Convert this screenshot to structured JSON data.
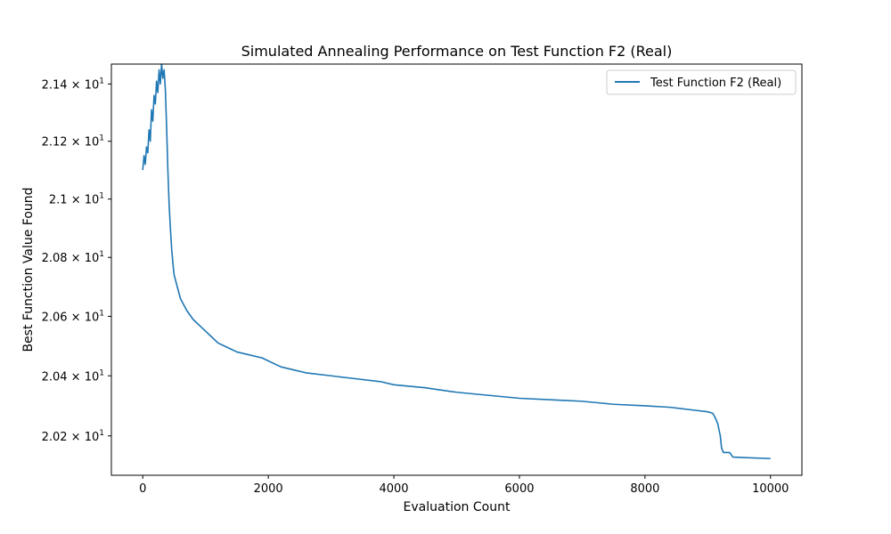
{
  "chart_data": {
    "type": "line",
    "title": "Simulated Annealing Performance on Test Function F2 (Real)",
    "xlabel": "Evaluation Count",
    "ylabel": "Best Function Value Found",
    "xlim": [
      -500,
      10500
    ],
    "ylim": [
      20.07,
      21.47
    ],
    "y_scale": "log",
    "grid": false,
    "legend_position": "top-right",
    "x_ticks": [
      0,
      2000,
      4000,
      6000,
      8000,
      10000
    ],
    "x_tick_labels": [
      "0",
      "2000",
      "4000",
      "6000",
      "8000",
      "10000"
    ],
    "y_ticks": [
      20.2,
      20.4,
      20.6,
      20.8,
      21.0,
      21.2,
      21.4
    ],
    "y_tick_labels": [
      {
        "mantissa": "2.02",
        "base": "10",
        "exp": "1"
      },
      {
        "mantissa": "2.04",
        "base": "10",
        "exp": "1"
      },
      {
        "mantissa": "2.06",
        "base": "10",
        "exp": "1"
      },
      {
        "mantissa": "2.08",
        "base": "10",
        "exp": "1"
      },
      {
        "mantissa": "2.1",
        "base": "10",
        "exp": "1"
      },
      {
        "mantissa": "2.12",
        "base": "10",
        "exp": "1"
      },
      {
        "mantissa": "2.14",
        "base": "10",
        "exp": "1"
      }
    ],
    "series": [
      {
        "name": "Test Function F2 (Real)",
        "color": "#1f77b4",
        "x": [
          0,
          20,
          40,
          60,
          80,
          100,
          120,
          140,
          160,
          180,
          200,
          220,
          240,
          260,
          280,
          300,
          320,
          340,
          360,
          380,
          400,
          420,
          440,
          460,
          480,
          500,
          550,
          600,
          650,
          700,
          800,
          900,
          1000,
          1100,
          1200,
          1300,
          1400,
          1500,
          1700,
          1900,
          2000,
          2200,
          2400,
          2600,
          3000,
          3400,
          3800,
          4000,
          4500,
          5000,
          5500,
          6000,
          6500,
          7000,
          7500,
          8000,
          8400,
          8800,
          9000,
          9080,
          9120,
          9160,
          9200,
          9220,
          9250,
          9300,
          9350,
          9400,
          9600,
          10000
        ],
        "y": [
          21.1,
          21.15,
          21.12,
          21.18,
          21.16,
          21.24,
          21.2,
          21.31,
          21.27,
          21.36,
          21.33,
          21.41,
          21.37,
          21.45,
          21.4,
          21.47,
          21.42,
          21.45,
          21.38,
          21.25,
          21.1,
          20.98,
          20.9,
          20.83,
          20.78,
          20.74,
          20.7,
          20.66,
          20.64,
          20.62,
          20.59,
          20.57,
          20.55,
          20.53,
          20.51,
          20.5,
          20.49,
          20.48,
          20.47,
          20.46,
          20.45,
          20.43,
          20.42,
          20.41,
          20.4,
          20.39,
          20.38,
          20.37,
          20.36,
          20.345,
          20.335,
          20.325,
          20.32,
          20.315,
          20.305,
          20.3,
          20.295,
          20.285,
          20.28,
          20.275,
          20.26,
          20.24,
          20.2,
          20.16,
          20.145,
          20.145,
          20.145,
          20.13,
          20.128,
          20.125
        ]
      }
    ]
  }
}
